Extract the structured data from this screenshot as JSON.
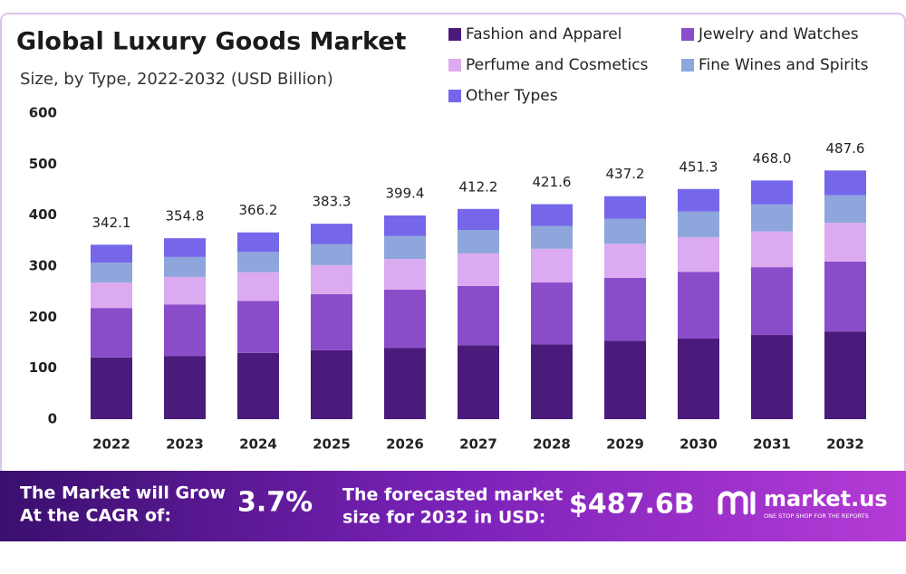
{
  "chart_data": {
    "type": "stacked_bar",
    "title": "Global Luxury Goods Market",
    "subtitle": "Size, by Type, 2022-2032 (USD Billion)",
    "categories": [
      "2022",
      "2023",
      "2024",
      "2025",
      "2026",
      "2027",
      "2028",
      "2029",
      "2030",
      "2031",
      "2032"
    ],
    "series": [
      {
        "name": "Fashion and Apparel",
        "color": "#4b1b7c",
        "values": [
          121,
          124,
          130,
          135,
          140,
          145,
          147,
          154,
          158,
          165,
          172
        ]
      },
      {
        "name": "Jewelry and Watches",
        "color": "#8a4dc9",
        "values": [
          97,
          101,
          102,
          110,
          114,
          116,
          121,
          123,
          131,
          133,
          137
        ]
      },
      {
        "name": "Perfume and Cosmetics",
        "color": "#dcaaf0",
        "values": [
          50,
          54,
          56,
          57,
          60,
          64,
          66,
          67,
          68,
          70,
          76
        ]
      },
      {
        "name": "Fine Wines and Spirits",
        "color": "#8ea6dc",
        "values": [
          39,
          39,
          40,
          41,
          45,
          46,
          45,
          49,
          50,
          53,
          54
        ]
      },
      {
        "name": "Other Types",
        "color": "#7566ea",
        "values": [
          35.1,
          36.8,
          38.2,
          40.3,
          40.4,
          41.2,
          42.6,
          44.2,
          44.3,
          47,
          48.6
        ]
      }
    ],
    "totals": {
      "values": [
        342.1,
        354.8,
        366.2,
        383.3,
        399.4,
        412.2,
        421.6,
        437.2,
        451.3,
        468,
        487.6
      ],
      "value_labels": [
        "342.1",
        "354.8",
        "366.2",
        "383.3",
        "399.4",
        "412.2",
        "421.6",
        "437.2",
        "451.3",
        "468.0",
        "487.6"
      ]
    },
    "ylim": [
      0,
      600
    ],
    "yticks": [
      0,
      100,
      200,
      300,
      400,
      500,
      600
    ],
    "grid": false
  },
  "footer": {
    "cagr_text": [
      "The Market will Grow",
      "At the CAGR of:"
    ],
    "cagr_value": "3.7%",
    "forecast_text": [
      "The forecasted market",
      "size for 2032 in USD:"
    ],
    "forecast_value": "$487.6B",
    "brand": "market.us",
    "tagline": "ONE STOP SHOP FOR THE REPORTS"
  }
}
